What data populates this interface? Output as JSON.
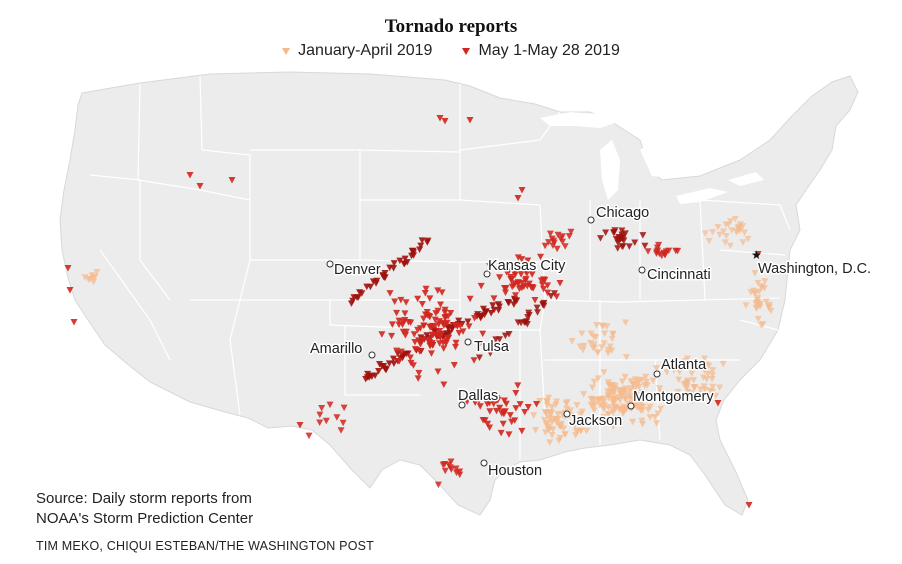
{
  "title": "Tornado reports",
  "legend": {
    "jan_apr": "January-April 2019",
    "may": "May 1-May 28 2019"
  },
  "colors": {
    "jan_apr": "#f5b98c",
    "may": "#d0261e",
    "may_dark": "#9e0f0c",
    "land": "#ececec",
    "borders": "#ffffff"
  },
  "cities": [
    {
      "name": "Chicago",
      "label_side": "right",
      "marker": "circle"
    },
    {
      "name": "Denver",
      "label_side": "below-right",
      "marker": "circle"
    },
    {
      "name": "Kansas City",
      "label_side": "right",
      "marker": "circle"
    },
    {
      "name": "Cincinnati",
      "label_side": "right",
      "marker": "circle"
    },
    {
      "name": "Washington, D.C.",
      "label_side": "below-right",
      "marker": "star"
    },
    {
      "name": "Amarillo",
      "label_side": "left",
      "marker": "circle"
    },
    {
      "name": "Tulsa",
      "label_side": "right",
      "marker": "circle"
    },
    {
      "name": "Atlanta",
      "label_side": "right",
      "marker": "circle"
    },
    {
      "name": "Dallas",
      "label_side": "right",
      "marker": "circle"
    },
    {
      "name": "Montgomery",
      "label_side": "right",
      "marker": "circle"
    },
    {
      "name": "Jackson",
      "label_side": "right",
      "marker": "circle"
    },
    {
      "name": "Houston",
      "label_side": "right",
      "marker": "circle"
    }
  ],
  "source": [
    "Source: Daily storm reports from",
    "NOAA's Storm Prediction Center"
  ],
  "credit": "TIM MEKO, CHIQUI ESTEBAN/THE WASHINGTON POST"
}
